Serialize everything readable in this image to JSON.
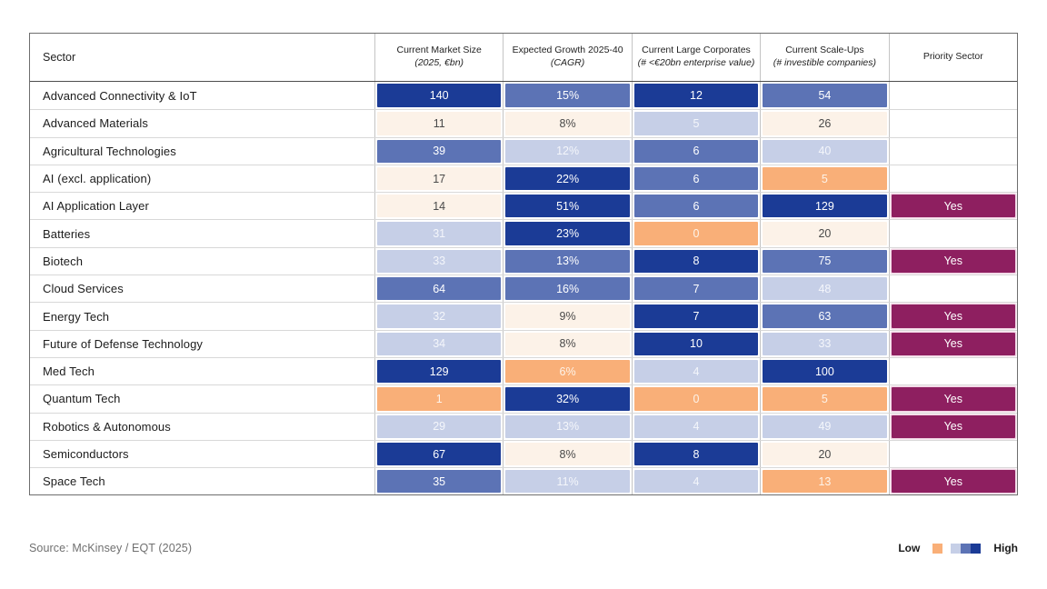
{
  "colors": {
    "dark": "#1B3B96",
    "mid": "#5C73B5",
    "light": "#C6CFE7",
    "orange": "#F9AF78",
    "cream": "#FCF2E8",
    "priority": "#8E1F60"
  },
  "chart_data": {
    "type": "heatmap",
    "legend": {
      "low": "Low",
      "high": "High"
    },
    "tone_scale_low_to_high": [
      "orange",
      "cream",
      "light",
      "mid",
      "dark"
    ],
    "columns": [
      {
        "main": "Sector",
        "italic": ""
      },
      {
        "main": "Current Market Size",
        "italic": "(2025, €bn)"
      },
      {
        "main": "Expected Growth 2025-40",
        "italic": "(CAGR)"
      },
      {
        "main": "Current Large Corporates",
        "italic": "(# <€20bn enterprise value)"
      },
      {
        "main": "Current Scale-Ups",
        "italic": "(# investible companies)"
      },
      {
        "main": "Priority Sector",
        "italic": ""
      }
    ],
    "rows": [
      {
        "sector": "Advanced Connectivity & IoT",
        "cells": [
          {
            "v": "140",
            "tone": "dark"
          },
          {
            "v": "15%",
            "tone": "mid"
          },
          {
            "v": "12",
            "tone": "dark"
          },
          {
            "v": "54",
            "tone": "mid"
          }
        ],
        "priority": ""
      },
      {
        "sector": "Advanced Materials",
        "cells": [
          {
            "v": "11",
            "tone": "cream"
          },
          {
            "v": "8%",
            "tone": "cream"
          },
          {
            "v": "5",
            "tone": "light"
          },
          {
            "v": "26",
            "tone": "cream"
          }
        ],
        "priority": ""
      },
      {
        "sector": "Agricultural Technologies",
        "cells": [
          {
            "v": "39",
            "tone": "mid"
          },
          {
            "v": "12%",
            "tone": "light"
          },
          {
            "v": "6",
            "tone": "mid"
          },
          {
            "v": "40",
            "tone": "light"
          }
        ],
        "priority": ""
      },
      {
        "sector": "AI (excl. application)",
        "cells": [
          {
            "v": "17",
            "tone": "cream"
          },
          {
            "v": "22%",
            "tone": "dark"
          },
          {
            "v": "6",
            "tone": "mid"
          },
          {
            "v": "5",
            "tone": "orange"
          }
        ],
        "priority": ""
      },
      {
        "sector": "AI Application Layer",
        "cells": [
          {
            "v": "14",
            "tone": "cream"
          },
          {
            "v": "51%",
            "tone": "dark"
          },
          {
            "v": "6",
            "tone": "mid"
          },
          {
            "v": "129",
            "tone": "dark"
          }
        ],
        "priority": "Yes"
      },
      {
        "sector": "Batteries",
        "cells": [
          {
            "v": "31",
            "tone": "light"
          },
          {
            "v": "23%",
            "tone": "dark"
          },
          {
            "v": "0",
            "tone": "orange"
          },
          {
            "v": "20",
            "tone": "cream"
          }
        ],
        "priority": ""
      },
      {
        "sector": "Biotech",
        "cells": [
          {
            "v": "33",
            "tone": "light"
          },
          {
            "v": "13%",
            "tone": "mid"
          },
          {
            "v": "8",
            "tone": "dark"
          },
          {
            "v": "75",
            "tone": "mid"
          }
        ],
        "priority": "Yes"
      },
      {
        "sector": "Cloud Services",
        "cells": [
          {
            "v": "64",
            "tone": "mid"
          },
          {
            "v": "16%",
            "tone": "mid"
          },
          {
            "v": "7",
            "tone": "mid"
          },
          {
            "v": "48",
            "tone": "light"
          }
        ],
        "priority": ""
      },
      {
        "sector": "Energy Tech",
        "cells": [
          {
            "v": "32",
            "tone": "light"
          },
          {
            "v": "9%",
            "tone": "cream"
          },
          {
            "v": "7",
            "tone": "dark"
          },
          {
            "v": "63",
            "tone": "mid"
          }
        ],
        "priority": "Yes"
      },
      {
        "sector": "Future of Defense Technology",
        "cells": [
          {
            "v": "34",
            "tone": "light"
          },
          {
            "v": "8%",
            "tone": "cream"
          },
          {
            "v": "10",
            "tone": "dark"
          },
          {
            "v": "33",
            "tone": "light"
          }
        ],
        "priority": "Yes"
      },
      {
        "sector": "Med Tech",
        "cells": [
          {
            "v": "129",
            "tone": "dark"
          },
          {
            "v": "6%",
            "tone": "orange"
          },
          {
            "v": "4",
            "tone": "light"
          },
          {
            "v": "100",
            "tone": "dark"
          }
        ],
        "priority": ""
      },
      {
        "sector": "Quantum Tech",
        "cells": [
          {
            "v": "1",
            "tone": "orange"
          },
          {
            "v": "32%",
            "tone": "dark"
          },
          {
            "v": "0",
            "tone": "orange"
          },
          {
            "v": "5",
            "tone": "orange"
          }
        ],
        "priority": "Yes"
      },
      {
        "sector": "Robotics & Autonomous",
        "cells": [
          {
            "v": "29",
            "tone": "light"
          },
          {
            "v": "13%",
            "tone": "light"
          },
          {
            "v": "4",
            "tone": "light"
          },
          {
            "v": "49",
            "tone": "light"
          }
        ],
        "priority": "Yes"
      },
      {
        "sector": "Semiconductors",
        "cells": [
          {
            "v": "67",
            "tone": "dark"
          },
          {
            "v": "8%",
            "tone": "cream"
          },
          {
            "v": "8",
            "tone": "dark"
          },
          {
            "v": "20",
            "tone": "cream"
          }
        ],
        "priority": ""
      },
      {
        "sector": "Space Tech",
        "cells": [
          {
            "v": "35",
            "tone": "mid"
          },
          {
            "v": "11%",
            "tone": "light"
          },
          {
            "v": "4",
            "tone": "light"
          },
          {
            "v": "13",
            "tone": "orange"
          }
        ],
        "priority": "Yes"
      }
    ]
  },
  "footer": {
    "source": "Source: McKinsey / EQT (2025)"
  }
}
